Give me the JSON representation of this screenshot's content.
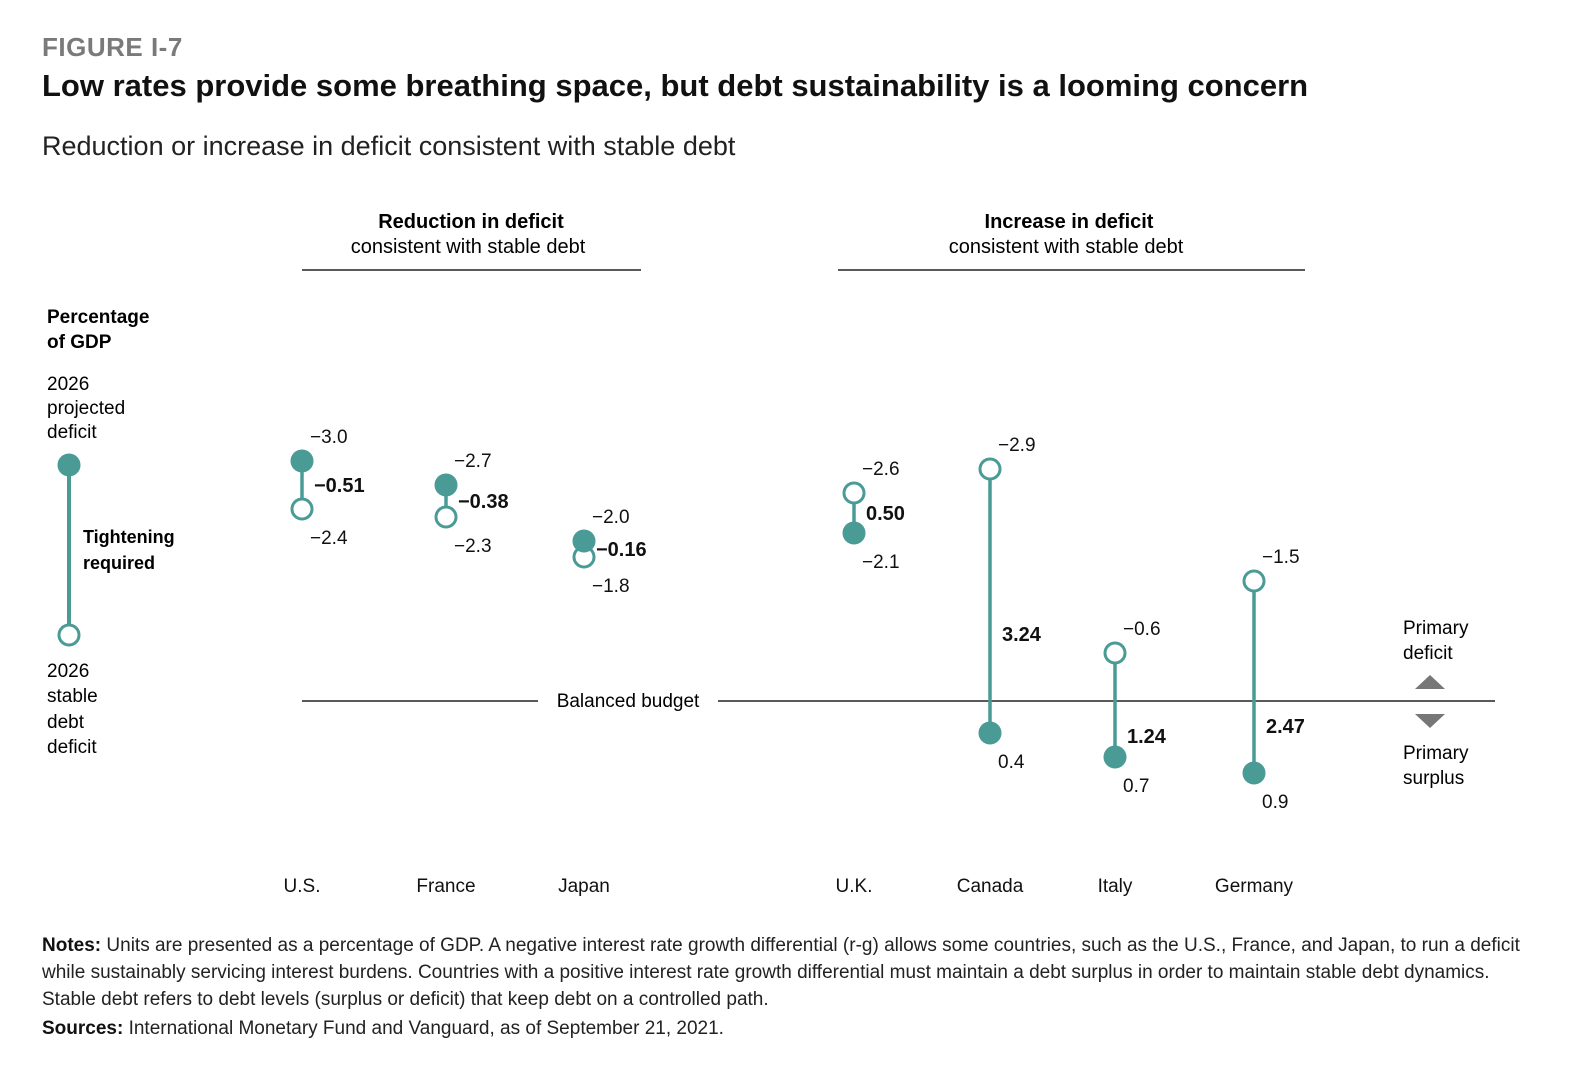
{
  "figure_label": "FIGURE I-7",
  "title": "Low rates provide some breathing space, but debt sustainability is a looming concern",
  "subtitle": "Reduction or increase in deficit consistent with stable debt",
  "colors": {
    "accent": "#4a9a96",
    "text": "#111111",
    "muted": "#7a7a7a",
    "axis": "#222222"
  },
  "legend": {
    "heading_line1": "Percentage",
    "heading_line2": "of GDP",
    "projected_lines": [
      "2026",
      "projected",
      "deficit"
    ],
    "stable_lines": [
      "2026",
      "stable",
      "debt",
      "deficit"
    ],
    "tightening_lines": [
      "Tightening",
      "required"
    ]
  },
  "groups": {
    "reduction": {
      "title": "Reduction in deficit",
      "subtitle": "consistent with stable debt"
    },
    "increase": {
      "title": "Increase in deficit",
      "subtitle": "consistent with stable debt"
    }
  },
  "balanced_label": "Balanced budget",
  "direction": {
    "up_line1": "Primary",
    "up_line2": "deficit",
    "down_line1": "Primary",
    "down_line2": "surplus"
  },
  "chart_data": {
    "type": "dumbbell",
    "y_inverted": true,
    "baseline_value": 0,
    "series_markers": {
      "projected": "2026 projected deficit (filled)",
      "stable": "2026 stable debt deficit (open)"
    },
    "countries": [
      {
        "name": "U.S.",
        "projected": -3.0,
        "stable": -2.4,
        "diff": "-0.51",
        "projected_label": "−3.0",
        "stable_label": "−2.4",
        "diff_label": "−0.51"
      },
      {
        "name": "France",
        "projected": -2.7,
        "stable": -2.3,
        "diff": "-0.38",
        "projected_label": "−2.7",
        "stable_label": "−2.3",
        "diff_label": "−0.38"
      },
      {
        "name": "Japan",
        "projected": -2.0,
        "stable": -1.8,
        "diff": "-0.16",
        "projected_label": "−2.0",
        "stable_label": "−1.8",
        "diff_label": "−0.16"
      },
      {
        "name": "U.K.",
        "projected": -2.1,
        "stable": -2.6,
        "diff": "0.50",
        "projected_label": "−2.1",
        "stable_label": "−2.6",
        "diff_label": "0.50"
      },
      {
        "name": "Canada",
        "projected": 0.4,
        "stable": -2.9,
        "diff": "3.24",
        "projected_label": "0.4",
        "stable_label": "−2.9",
        "diff_label": "3.24"
      },
      {
        "name": "Italy",
        "projected": 0.7,
        "stable": -0.6,
        "diff": "1.24",
        "projected_label": "0.7",
        "stable_label": "−0.6",
        "diff_label": "1.24"
      },
      {
        "name": "Germany",
        "projected": 0.9,
        "stable": -1.5,
        "diff": "2.47",
        "projected_label": "0.9",
        "stable_label": "−1.5",
        "diff_label": "2.47"
      }
    ]
  },
  "notes_label": "Notes:",
  "notes_text": " Units are presented as a percentage of GDP. A negative interest rate growth differential (r-g) allows some countries, such as the U.S., France, and Japan, to run a deficit while sustainably servicing interest burdens. Countries with a positive interest rate growth differential must maintain a debt surplus in order to maintain stable debt dynamics. Stable debt refers to debt levels (surplus or deficit) that keep debt on a controlled path.",
  "sources_label": "Sources:",
  "sources_text": " International Monetary Fund and Vanguard, as of September 21, 2021."
}
